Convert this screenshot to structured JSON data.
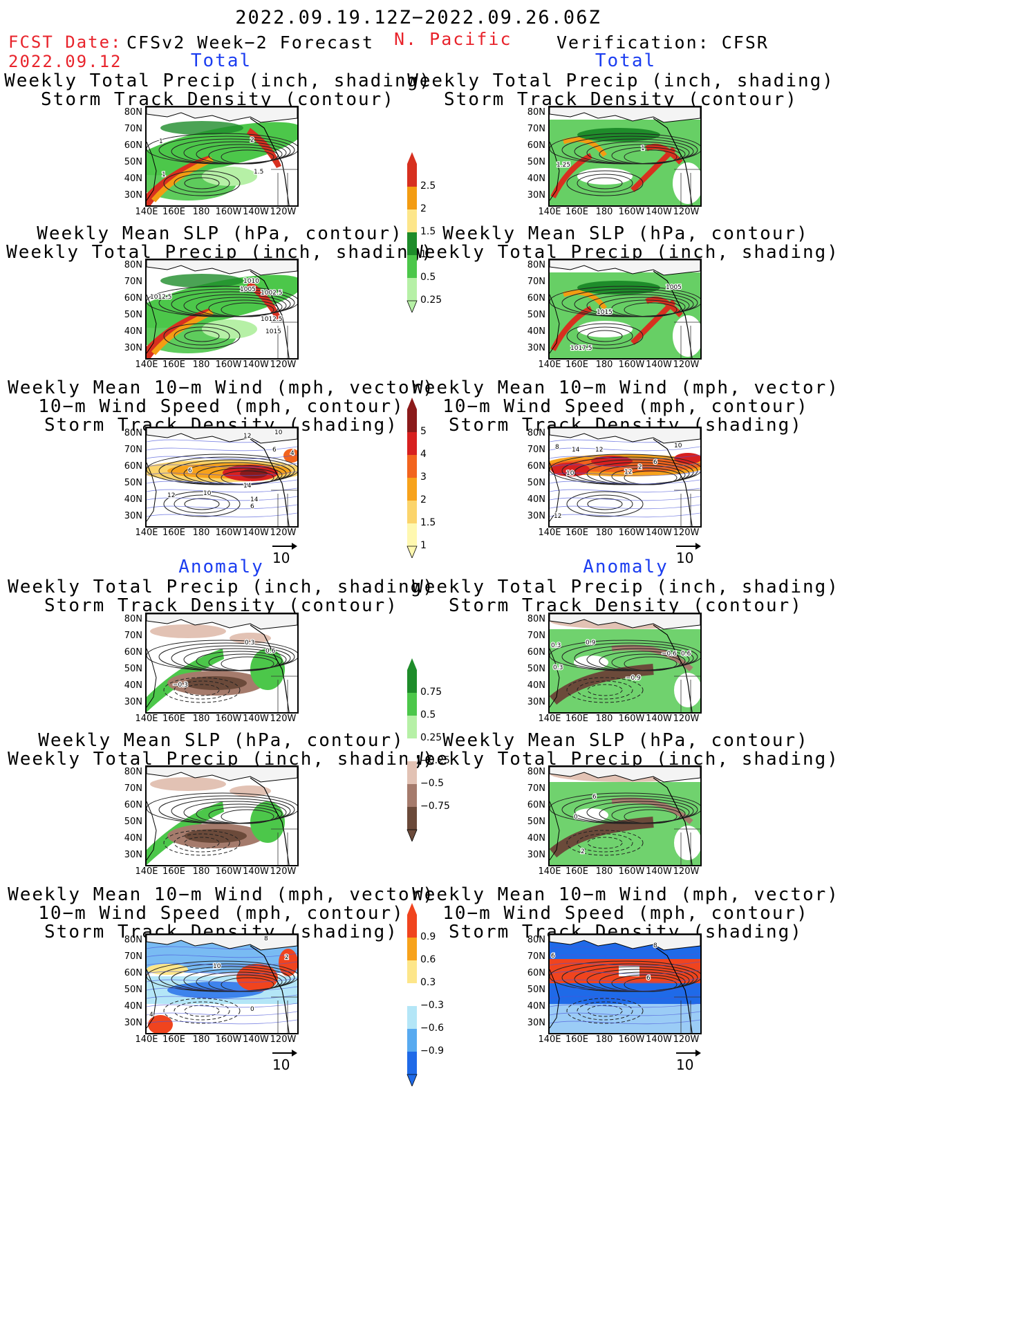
{
  "header": {
    "date_range": "2022.09.19.12Z−2022.09.26.06Z",
    "fcst_label": "FCST Date:",
    "fcst_date": "2022.09.12",
    "left_title": "CFSv2 Week−2 Forecast",
    "region": "N. Pacific",
    "right_title": "Verification: CFSR"
  },
  "sections": {
    "total": "Total",
    "anomaly": "Anomaly"
  },
  "panel_titles": {
    "precip_track": [
      "Weekly Total Precip (inch, shading)",
      "Storm Track Density (contour)"
    ],
    "slp_precip": [
      "Weekly Mean SLP (hPa, contour)",
      "Weekly Total Precip (inch, shading)"
    ],
    "wind": [
      "Weekly Mean 10−m Wind (mph, vector)",
      "10−m Wind Speed (mph, contour)",
      "Storm Track Density (shading)"
    ]
  },
  "axes": {
    "lat": [
      "80N",
      "70N",
      "60N",
      "50N",
      "40N",
      "30N"
    ],
    "lon": [
      "140E",
      "160E",
      "180",
      "160W",
      "140W",
      "120W"
    ]
  },
  "vector_ref": "10",
  "colorbars": {
    "precip_total": {
      "labels": [
        "2.5",
        "2",
        "1.5",
        "1",
        "0.5",
        "0.25"
      ],
      "colors": [
        "#d7301f",
        "#f39c12",
        "#fde68a",
        "#1e8c2a",
        "#4cc74a",
        "#b6f0a6"
      ]
    },
    "track_total": {
      "labels": [
        "5",
        "4",
        "3",
        "2",
        "1.5",
        "1"
      ],
      "colors": [
        "#8b1a1a",
        "#d7201f",
        "#f2641e",
        "#f7a21b",
        "#fbd46b",
        "#fff8b0"
      ]
    },
    "precip_anom": {
      "labels": [
        "0.75",
        "0.5",
        "0.25",
        "−0.25",
        "−0.5",
        "−0.75"
      ],
      "colors": [
        "#1e8c2a",
        "#4cc74a",
        "#b6f0a6",
        "#ffffff",
        "#e2c2b4",
        "#a57b6c",
        "#6b4a3a"
      ]
    },
    "track_anom": {
      "labels": [
        "0.9",
        "0.6",
        "0.3",
        "−0.3",
        "−0.6",
        "−0.9"
      ],
      "colors": [
        "#f0441e",
        "#f7a21b",
        "#fde68a",
        "#ffffff",
        "#b4e6f7",
        "#58aaf0",
        "#1f6ae8"
      ]
    }
  },
  "contour_labels": {
    "L1": [
      "1",
      "2",
      "1",
      "1.5"
    ],
    "R1": [
      "1",
      "1.25"
    ],
    "L2": [
      "1010",
      "1005",
      "1002.5",
      "1012.5",
      "1012.5",
      "1015"
    ],
    "R2": [
      "1005",
      "1015",
      "1017.5"
    ],
    "L3": [
      "12",
      "10",
      "6",
      "4",
      "6",
      "14",
      "12",
      "10",
      "14",
      "6"
    ],
    "R3": [
      "8",
      "14",
      "12",
      "12",
      "2",
      "6",
      "10",
      "10",
      "12"
    ],
    "L4": [
      "0.3",
      "0.6",
      "−0.3"
    ],
    "R4": [
      "0.3",
      "0.9",
      "−0.6",
      "0.6",
      "0.3",
      "−0.9"
    ],
    "R5": [
      "6",
      "0",
      "2"
    ],
    "L6": [
      "8",
      "2",
      "10",
      "4",
      "0"
    ],
    "R6": [
      "8",
      "6",
      "6"
    ]
  }
}
